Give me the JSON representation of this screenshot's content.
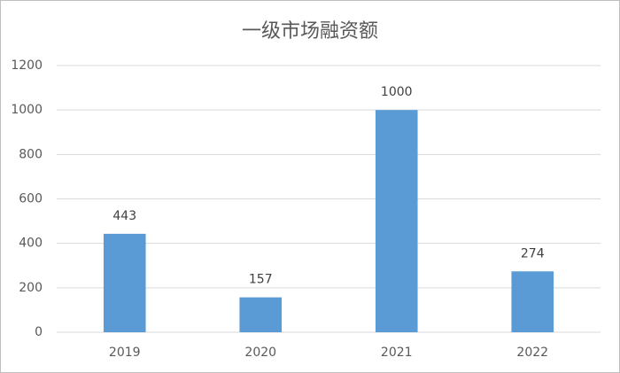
{
  "chart_data": {
    "type": "bar",
    "title": "一级市场融资额",
    "categories": [
      "2019",
      "2020",
      "2021",
      "2022"
    ],
    "values": [
      443,
      157,
      1000,
      274
    ],
    "color": "#5b9bd5",
    "ylim": [
      0,
      1200
    ],
    "yticks": [
      0,
      200,
      400,
      600,
      800,
      1000,
      1200
    ],
    "grid": true,
    "data_labels": true
  }
}
